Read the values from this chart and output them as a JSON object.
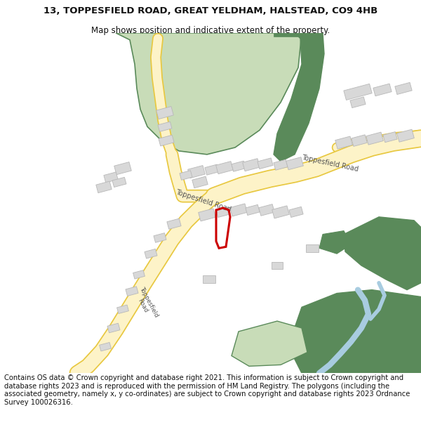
{
  "title": "13, TOPPESFIELD ROAD, GREAT YELDHAM, HALSTEAD, CO9 4HB",
  "subtitle": "Map shows position and indicative extent of the property.",
  "footer": "Contains OS data © Crown copyright and database right 2021. This information is subject to Crown copyright and database rights 2023 and is reproduced with the permission of HM Land Registry. The polygons (including the associated geometry, namely x, y co-ordinates) are subject to Crown copyright and database rights 2023 Ordnance Survey 100026316.",
  "title_fontsize": 9.5,
  "subtitle_fontsize": 8.5,
  "footer_fontsize": 7.2,
  "bg_color": "#ffffff",
  "map_bg": "#f8f8f8",
  "road_fill": "#fdf3c8",
  "road_border": "#e8c840",
  "green_light": "#c8dcb8",
  "green_dark": "#5a8a5a",
  "building_color": "#d8d8d8",
  "building_border": "#b8b8b8",
  "water_color": "#a8cce0",
  "red_outline": "#cc0000",
  "text_road": "#555555"
}
